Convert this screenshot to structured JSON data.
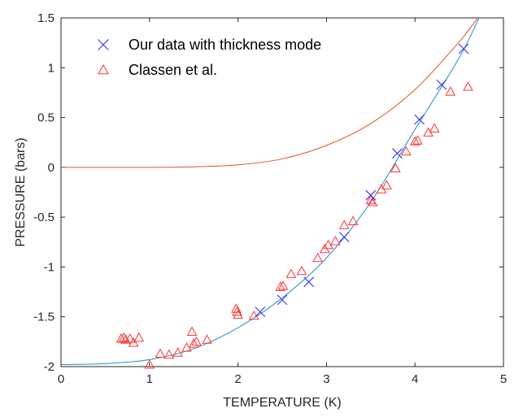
{
  "chart_data": {
    "type": "scatter",
    "xlabel": "TEMPERATURE (K)",
    "ylabel": "PRESSURE (bars)",
    "xlim": [
      0,
      5
    ],
    "ylim": [
      -2,
      1.5
    ],
    "x_ticks": [
      "0",
      "1",
      "2",
      "3",
      "4",
      "5"
    ],
    "y_ticks": [
      "-2",
      "-1.5",
      "-1",
      "-0.5",
      "0",
      "0.5",
      "1",
      "1.5"
    ],
    "grid": false,
    "legend_position": "top-left",
    "series": [
      {
        "name": "Our data with thickness mode",
        "marker": "x",
        "color": "#3333ff",
        "points": [
          [
            2.25,
            -1.45
          ],
          [
            2.5,
            -1.33
          ],
          [
            2.8,
            -1.15
          ],
          [
            3.2,
            -0.7
          ],
          [
            3.5,
            -0.28
          ],
          [
            3.8,
            0.14
          ],
          [
            4.05,
            0.48
          ],
          [
            4.3,
            0.83
          ],
          [
            4.55,
            1.19
          ]
        ]
      },
      {
        "name": "Classen et al.",
        "marker": "triangle",
        "color": "#ff3333",
        "points": [
          [
            0.68,
            -1.72
          ],
          [
            0.71,
            -1.71
          ],
          [
            0.73,
            -1.73
          ],
          [
            0.78,
            -1.72
          ],
          [
            0.82,
            -1.76
          ],
          [
            0.88,
            -1.71
          ],
          [
            1.0,
            -1.98
          ],
          [
            1.12,
            -1.87
          ],
          [
            1.22,
            -1.88
          ],
          [
            1.32,
            -1.86
          ],
          [
            1.42,
            -1.81
          ],
          [
            1.48,
            -1.65
          ],
          [
            1.5,
            -1.77
          ],
          [
            1.53,
            -1.75
          ],
          [
            1.65,
            -1.73
          ],
          [
            1.98,
            -1.42
          ],
          [
            1.99,
            -1.45
          ],
          [
            2.0,
            -1.48
          ],
          [
            2.18,
            -1.49
          ],
          [
            2.48,
            -1.2
          ],
          [
            2.51,
            -1.19
          ],
          [
            2.6,
            -1.07
          ],
          [
            2.72,
            -1.04
          ],
          [
            2.9,
            -0.91
          ],
          [
            2.98,
            -0.82
          ],
          [
            3.02,
            -0.78
          ],
          [
            3.1,
            -0.74
          ],
          [
            3.2,
            -0.58
          ],
          [
            3.3,
            -0.54
          ],
          [
            3.5,
            -0.33
          ],
          [
            3.52,
            -0.35
          ],
          [
            3.62,
            -0.22
          ],
          [
            3.68,
            -0.18
          ],
          [
            3.78,
            -0.01
          ],
          [
            3.9,
            0.16
          ],
          [
            4.0,
            0.26
          ],
          [
            4.03,
            0.27
          ],
          [
            4.15,
            0.35
          ],
          [
            4.22,
            0.39
          ],
          [
            4.4,
            0.76
          ],
          [
            4.6,
            0.81
          ]
        ]
      },
      {
        "type": "line",
        "color": "#1f8fc2",
        "points": [
          [
            0,
            -1.98
          ],
          [
            0.5,
            -1.97
          ],
          [
            1.0,
            -1.93
          ],
          [
            1.5,
            -1.82
          ],
          [
            2.0,
            -1.61
          ],
          [
            2.5,
            -1.31
          ],
          [
            3.0,
            -0.91
          ],
          [
            3.5,
            -0.35
          ],
          [
            4.0,
            0.38
          ],
          [
            4.5,
            1.1
          ],
          [
            4.75,
            1.55
          ]
        ]
      },
      {
        "type": "line",
        "color": "#e4541c",
        "points": [
          [
            0,
            0.0
          ],
          [
            0.5,
            0.0
          ],
          [
            1.0,
            0.0
          ],
          [
            1.5,
            0.005
          ],
          [
            2.0,
            0.025
          ],
          [
            2.5,
            0.085
          ],
          [
            3.0,
            0.22
          ],
          [
            3.5,
            0.44
          ],
          [
            4.0,
            0.78
          ],
          [
            4.5,
            1.26
          ],
          [
            4.75,
            1.55
          ]
        ]
      }
    ]
  }
}
